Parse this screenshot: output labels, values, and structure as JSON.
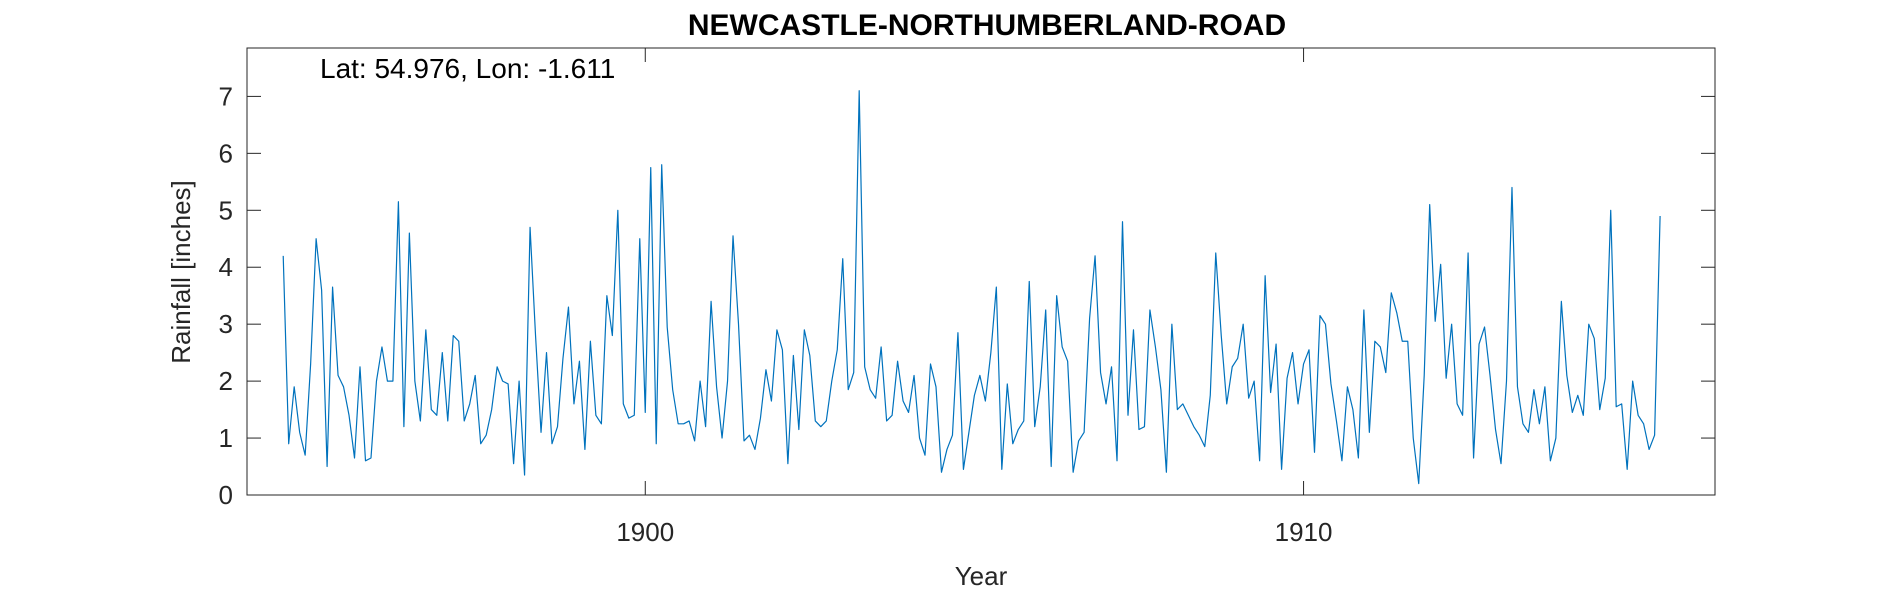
{
  "chart_data": {
    "type": "line",
    "title": "NEWCASTLE-NORTHUMBERLAND-ROAD",
    "annotation": "Lat: 54.976, Lon: -1.611",
    "xlabel": "Year",
    "ylabel": "Rainfall [inches]",
    "xlim": [
      1893.95,
      1916.25
    ],
    "ylim": [
      0,
      7.85
    ],
    "xticks": [
      1900,
      1910
    ],
    "yticks": [
      0,
      1,
      2,
      3,
      4,
      5,
      6,
      7
    ],
    "grid": false,
    "series_color": "#0072BD",
    "x_start": 1894.5,
    "x_step": 0.08333,
    "values": [
      4.2,
      0.9,
      1.9,
      1.1,
      0.7,
      2.3,
      4.5,
      3.6,
      0.5,
      3.65,
      2.1,
      1.9,
      1.4,
      0.65,
      2.25,
      0.6,
      0.65,
      2.0,
      2.6,
      2.0,
      2.0,
      5.15,
      1.2,
      4.6,
      2.0,
      1.3,
      2.9,
      1.5,
      1.4,
      2.5,
      1.3,
      2.8,
      2.7,
      1.3,
      1.6,
      2.1,
      0.9,
      1.05,
      1.5,
      2.25,
      2.0,
      1.95,
      0.55,
      2.0,
      0.35,
      4.7,
      2.8,
      1.1,
      2.5,
      0.9,
      1.2,
      2.4,
      3.3,
      1.6,
      2.35,
      0.8,
      2.7,
      1.4,
      1.25,
      3.5,
      2.8,
      5.0,
      1.6,
      1.35,
      1.4,
      4.5,
      1.45,
      5.75,
      0.9,
      5.8,
      2.95,
      1.85,
      1.25,
      1.25,
      1.3,
      0.95,
      2.0,
      1.2,
      3.4,
      1.9,
      1.0,
      2.0,
      4.55,
      3.0,
      0.95,
      1.05,
      0.8,
      1.35,
      2.2,
      1.65,
      2.9,
      2.55,
      0.55,
      2.45,
      1.15,
      2.9,
      2.45,
      1.3,
      1.2,
      1.3,
      2.0,
      2.55,
      4.15,
      1.85,
      2.15,
      7.1,
      2.25,
      1.85,
      1.7,
      2.6,
      1.3,
      1.4,
      2.35,
      1.65,
      1.45,
      2.1,
      1.0,
      0.7,
      2.3,
      1.9,
      0.4,
      0.8,
      1.05,
      2.85,
      0.45,
      1.1,
      1.75,
      2.1,
      1.65,
      2.5,
      3.65,
      0.45,
      1.95,
      0.9,
      1.15,
      1.3,
      3.75,
      1.2,
      1.9,
      3.25,
      0.5,
      3.5,
      2.6,
      2.35,
      0.4,
      0.95,
      1.1,
      3.1,
      4.2,
      2.15,
      1.6,
      2.25,
      0.6,
      4.8,
      1.4,
      2.9,
      1.15,
      1.2,
      3.25,
      2.6,
      1.85,
      0.4,
      3.0,
      1.5,
      1.6,
      1.4,
      1.2,
      1.05,
      0.85,
      1.75,
      4.25,
      2.8,
      1.6,
      2.25,
      2.4,
      3.0,
      1.7,
      2.0,
      0.6,
      3.85,
      1.8,
      2.65,
      0.45,
      2.05,
      2.5,
      1.6,
      2.3,
      2.55,
      0.75,
      3.15,
      3.0,
      1.95,
      1.3,
      0.6,
      1.9,
      1.5,
      0.65,
      3.25,
      1.1,
      2.7,
      2.6,
      2.15,
      3.55,
      3.2,
      2.7,
      2.7,
      1.0,
      0.2,
      2.1,
      5.1,
      3.05,
      4.05,
      2.05,
      3.0,
      1.6,
      1.4,
      4.25,
      0.65,
      2.65,
      2.95,
      2.1,
      1.15,
      0.55,
      2.0,
      5.4,
      1.9,
      1.25,
      1.1,
      1.85,
      1.25,
      1.9,
      0.6,
      1.0,
      3.4,
      2.1,
      1.45,
      1.75,
      1.4,
      3.0,
      2.75,
      1.5,
      2.05,
      5.0,
      1.55,
      1.6,
      0.45,
      2.0,
      1.4,
      1.25,
      0.8,
      1.05,
      4.9
    ]
  }
}
